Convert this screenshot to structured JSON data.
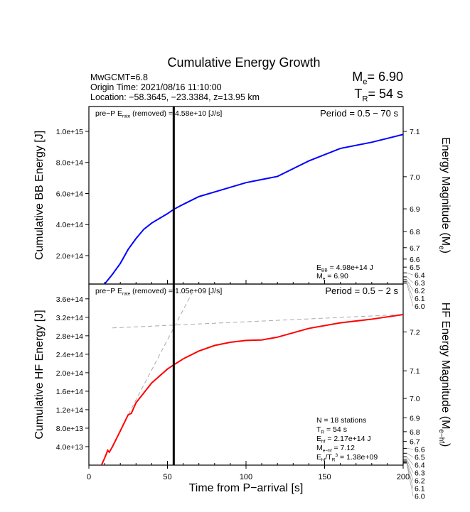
{
  "chart_data": [
    {
      "type": "line",
      "title": "Cumulative Energy Growth",
      "header_left": [
        "MwGCMT=6.8",
        "Origin Time: 2021/08/16 11:10:00",
        "Location: −58.3645, −23.3384, z=13.95 km"
      ],
      "header_right": {
        "me_label": "M",
        "me_sub": "e",
        "me_value": "= 6.90",
        "tr_label": "T",
        "tr_sub": "R",
        "tr_value": "= 54 s"
      },
      "ylabel": "Cumulative BB Energy [J]",
      "ylabel_right": "Energy Magnitude (M",
      "ylabel_right_sub": "e",
      "ylim": [
        17000000000000.0,
        1160000000000000.0
      ],
      "yticks": [
        200000000000000.0,
        400000000000000.0,
        600000000000000.0,
        800000000000000.0,
        1000000000000000.0
      ],
      "ytick_labels": [
        "2.0e+14",
        "4.0e+14",
        "6.0e+14",
        "8.0e+14",
        "1.0e+15"
      ],
      "right_ticks": [
        6.0,
        6.1,
        6.2,
        6.3,
        6.4,
        6.5,
        6.6,
        6.7,
        6.8,
        6.9,
        7.0,
        7.1
      ],
      "prep_text": "pre−P E",
      "prep_sub": "rate",
      "prep_rest": " (removed) = 4.58e+10 [J/s]",
      "period": "Period = 0.5 − 70 s",
      "annot": [
        {
          "l": "E",
          "s": "BB",
          "r": " = 4.98e+14 J"
        },
        {
          "l": "M",
          "s": "e",
          "r": " = 6.90"
        }
      ],
      "color": "#0000ff",
      "vline_x": 54,
      "series": [
        {
          "x": [
            10,
            15,
            20,
            25,
            30,
            35,
            40,
            50,
            54,
            60,
            70,
            80,
            100,
            120,
            130,
            140,
            160,
            180,
            200
          ],
          "y": [
            17000000000000.0,
            80000000000000.0,
            150000000000000.0,
            240000000000000.0,
            310000000000000.0,
            370000000000000.0,
            410000000000000.0,
            470000000000000.0,
            498000000000000.0,
            530000000000000.0,
            580000000000000.0,
            610000000000000.0,
            670000000000000.0,
            710000000000000.0,
            760000000000000.0,
            810000000000000.0,
            890000000000000.0,
            930000000000000.0,
            980000000000000.0
          ]
        }
      ]
    },
    {
      "type": "line",
      "xlabel": "Time from P−arrival [s]",
      "xlim": [
        0,
        200
      ],
      "xticks": [
        0,
        50,
        100,
        150,
        200
      ],
      "ylabel": "Cumulative HF Energy [J]",
      "ylabel_right": "HF Energy Magnitude (M",
      "ylabel_right_sub": "e−hf",
      "ylim": [
        0,
        392000000000000.0
      ],
      "yticks": [
        40000000000000.0,
        80000000000000.0,
        120000000000000.0,
        160000000000000.0,
        200000000000000.0,
        240000000000000.0,
        280000000000000.0,
        320000000000000.0,
        360000000000000.0
      ],
      "ytick_labels": [
        "4.0e+13",
        "8.0e+13",
        "1.2e+14",
        "1.6e+14",
        "2.0e+14",
        "2.4e+14",
        "2.8e+14",
        "3.2e+14",
        "3.6e+14"
      ],
      "right_ticks": [
        6.0,
        6.1,
        6.2,
        6.3,
        6.4,
        6.5,
        6.6,
        6.7,
        6.8,
        6.9,
        7.0,
        7.1,
        7.2
      ],
      "prep_text": "pre−P E",
      "prep_sub": "rate",
      "prep_rest": " (removed) = 1.05e+09 [J/s]",
      "period": "Period = 0.5 − 2 s",
      "annot": [
        {
          "l": "N = 18 stations",
          "s": "",
          "r": ""
        },
        {
          "l": "T",
          "s": "R",
          "r": " = 54  s"
        },
        {
          "l": "E",
          "s": "hf",
          "r": " = 2.17e+14 J"
        },
        {
          "l": "M",
          "s": "e−hf",
          "r": " = 7.12"
        },
        {
          "l": "E",
          "s": "hf",
          "r": "/T",
          "s2": "R",
          "sup": "3",
          "r2": " =  1.38e+09"
        }
      ],
      "color": "#ff0000",
      "vline_x": 54,
      "series": [
        {
          "x": [
            8,
            10,
            12,
            13,
            15,
            20,
            25,
            27,
            30,
            40,
            50,
            54,
            60,
            70,
            80,
            90,
            100,
            110,
            120,
            140,
            160,
            180,
            200
          ],
          "y": [
            0,
            15000000000000.0,
            32000000000000.0,
            28000000000000.0,
            40000000000000.0,
            74000000000000.0,
            109000000000000.0,
            112000000000000.0,
            135000000000000.0,
            178000000000000.0,
            208000000000000.0,
            217000000000000.0,
            230000000000000.0,
            247000000000000.0,
            259000000000000.0,
            266000000000000.0,
            270000000000000.0,
            271000000000000.0,
            277000000000000.0,
            296000000000000.0,
            308000000000000.0,
            316000000000000.0,
            326000000000000.0
          ]
        }
      ],
      "dashed": [
        {
          "x": [
            25,
            66
          ],
          "y": [
            109000000000000.0,
            375000000000000.0
          ]
        },
        {
          "x": [
            15,
            200
          ],
          "y": [
            297000000000000.0,
            326000000000000.0
          ]
        }
      ]
    }
  ]
}
